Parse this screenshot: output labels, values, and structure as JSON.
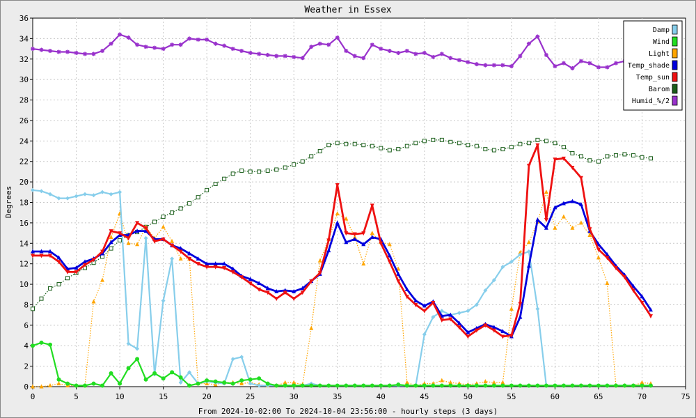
{
  "chart_data": {
    "type": "line",
    "title": "Weather in Essex",
    "xlabel": "From 2024-10-02:00 To 2024-10-04 23:56:00 - hourly steps (3 days)",
    "ylabel": "Degrees",
    "xlim": [
      0,
      75
    ],
    "ylim": [
      0,
      36
    ],
    "x_ticks": [
      0,
      5,
      10,
      15,
      20,
      25,
      30,
      35,
      40,
      45,
      50,
      55,
      60,
      65,
      70,
      75
    ],
    "y_ticks": [
      0,
      2,
      4,
      6,
      8,
      10,
      12,
      14,
      16,
      18,
      20,
      22,
      24,
      26,
      28,
      30,
      32,
      34,
      36
    ],
    "grid": true,
    "legend_position": "top-right",
    "series": [
      {
        "name": "Damp",
        "color": "#87ceeb",
        "marker": "diamond",
        "style": "solid",
        "values": [
          19.2,
          19.1,
          18.8,
          18.4,
          18.4,
          18.6,
          18.8,
          18.7,
          19.0,
          18.8,
          19.0,
          4.2,
          3.7,
          14.5,
          1.2,
          8.4,
          12.5,
          0.4,
          1.4,
          0.3,
          0.5,
          0.4,
          0.3,
          2.7,
          2.9,
          0.3,
          0.1,
          0.1,
          0.1,
          0.1,
          0.1,
          0.1,
          0.3,
          0.1,
          0.1,
          0.1,
          0.1,
          0.1,
          0.1,
          0.1,
          0.1,
          0.1,
          0.1,
          0.1,
          0.1,
          5.1,
          6.8,
          7.4,
          7.0,
          7.2,
          7.4,
          8.0,
          9.4,
          10.4,
          11.7,
          12.2,
          12.9,
          13.2,
          7.6,
          0.1,
          0.1,
          0.1,
          0.1,
          0.1,
          0.1,
          0.1,
          0.1,
          0.1,
          0.1,
          0.1,
          0.1,
          0.1
        ]
      },
      {
        "name": "Wind",
        "color": "#22dd22",
        "marker": "circle",
        "style": "solid",
        "values": [
          4.0,
          4.3,
          4.1,
          0.7,
          0.3,
          0.1,
          0.1,
          0.3,
          0.1,
          1.3,
          0.3,
          1.8,
          2.7,
          0.7,
          1.3,
          0.8,
          1.4,
          0.9,
          0.1,
          0.3,
          0.6,
          0.5,
          0.4,
          0.3,
          0.6,
          0.7,
          0.8,
          0.3,
          0.1,
          0.1,
          0.1,
          0.1,
          0.1,
          0.1,
          0.1,
          0.1,
          0.1,
          0.1,
          0.1,
          0.1,
          0.1,
          0.1,
          0.2,
          0.1,
          0.1,
          0.1,
          0.1,
          0.1,
          0.1,
          0.1,
          0.1,
          0.1,
          0.1,
          0.1,
          0.1,
          0.1,
          0.1,
          0.1,
          0.1,
          0.1,
          0.1,
          0.1,
          0.1,
          0.1,
          0.1,
          0.1,
          0.1,
          0.1,
          0.1,
          0.1,
          0.1,
          0.1
        ]
      },
      {
        "name": "Light",
        "color": "#ffa500",
        "marker": "triangle",
        "style": "dotted",
        "values": [
          0.0,
          0.0,
          0.1,
          0.3,
          0.1,
          0.1,
          0.1,
          8.3,
          10.4,
          14.6,
          16.9,
          14.0,
          13.9,
          15.6,
          14.5,
          15.6,
          14.2,
          12.5,
          12.5,
          0.3,
          0.3,
          0.2,
          0.4,
          0.4,
          0.3,
          0.4,
          0.2,
          0.1,
          0.1,
          0.4,
          0.4,
          0.2,
          5.7,
          12.3,
          14.4,
          16.9,
          16.4,
          14.6,
          12.0,
          15.0,
          14.1,
          13.9,
          11.5,
          0.4,
          0.1,
          0.3,
          0.3,
          0.6,
          0.4,
          0.3,
          0.2,
          0.3,
          0.5,
          0.4,
          0.4,
          7.6,
          13.1,
          14.1,
          16.1,
          19.0,
          15.5,
          16.6,
          15.5,
          16.0,
          14.8,
          12.6,
          10.1,
          0.1,
          0.1,
          0.1,
          0.4,
          0.3
        ]
      },
      {
        "name": "Temp_shade",
        "color": "#0000dd",
        "marker": "triangle",
        "style": "solid",
        "values": [
          13.2,
          13.2,
          13.2,
          12.6,
          11.5,
          11.6,
          12.2,
          12.5,
          13.0,
          14.1,
          14.8,
          14.8,
          15.2,
          15.2,
          14.4,
          14.4,
          13.8,
          13.5,
          13.0,
          12.5,
          12.0,
          12.0,
          12.0,
          11.5,
          10.8,
          10.5,
          10.1,
          9.6,
          9.3,
          9.4,
          9.3,
          9.6,
          10.3,
          11.0,
          13.3,
          16.0,
          14.1,
          14.4,
          13.9,
          14.6,
          14.4,
          12.8,
          11.0,
          9.5,
          8.4,
          7.9,
          8.3,
          6.9,
          7.0,
          6.2,
          5.3,
          5.7,
          6.1,
          5.8,
          5.4,
          4.9,
          6.8,
          11.8,
          16.3,
          15.5,
          17.5,
          17.9,
          18.1,
          17.8,
          15.2,
          13.9,
          12.9,
          11.8,
          10.9,
          9.8,
          8.8,
          7.5
        ]
      },
      {
        "name": "Temp_sun",
        "color": "#ee1111",
        "marker": "triangle-down",
        "style": "solid",
        "values": [
          12.8,
          12.8,
          12.8,
          12.2,
          11.2,
          11.2,
          11.9,
          12.4,
          13.2,
          15.2,
          15.0,
          14.5,
          16.0,
          15.5,
          14.2,
          14.4,
          13.8,
          13.2,
          12.5,
          12.0,
          11.7,
          11.7,
          11.6,
          11.2,
          10.7,
          10.1,
          9.5,
          9.2,
          8.6,
          9.2,
          8.6,
          9.2,
          10.3,
          11.1,
          14.3,
          19.7,
          15.0,
          14.9,
          15.0,
          17.7,
          14.0,
          12.2,
          10.3,
          8.8,
          8.0,
          7.4,
          8.2,
          6.5,
          6.6,
          5.8,
          4.9,
          5.5,
          6.0,
          5.5,
          4.9,
          5.0,
          8.1,
          21.6,
          23.6,
          16.3,
          22.2,
          22.3,
          21.4,
          20.4,
          15.4,
          13.4,
          12.6,
          11.6,
          10.7,
          9.4,
          8.2,
          6.9
        ]
      },
      {
        "name": "Barom",
        "color": "#1a5e1a",
        "marker": "square",
        "style": "dotted",
        "values": [
          7.6,
          8.6,
          9.6,
          10.0,
          10.6,
          11.1,
          11.6,
          12.1,
          12.7,
          13.5,
          14.3,
          14.8,
          15.1,
          15.6,
          16.1,
          16.6,
          17.0,
          17.4,
          17.9,
          18.5,
          19.2,
          19.8,
          20.3,
          20.8,
          21.1,
          21.0,
          21.0,
          21.1,
          21.2,
          21.4,
          21.7,
          22.0,
          22.5,
          23.0,
          23.6,
          23.8,
          23.7,
          23.7,
          23.6,
          23.5,
          23.3,
          23.1,
          23.2,
          23.5,
          23.8,
          24.0,
          24.1,
          24.1,
          23.9,
          23.8,
          23.6,
          23.5,
          23.2,
          23.1,
          23.2,
          23.4,
          23.7,
          23.8,
          24.1,
          24.0,
          23.8,
          23.4,
          22.8,
          22.5,
          22.1,
          22.0,
          22.5,
          22.6,
          22.7,
          22.6,
          22.4,
          22.3
        ]
      },
      {
        "name": "Humid_%/2",
        "color": "#9932cc",
        "marker": "star",
        "style": "solid",
        "values": [
          33.0,
          32.9,
          32.8,
          32.7,
          32.7,
          32.6,
          32.5,
          32.5,
          32.8,
          33.5,
          34.4,
          34.1,
          33.4,
          33.2,
          33.1,
          33.0,
          33.4,
          33.4,
          34.0,
          33.9,
          33.9,
          33.5,
          33.3,
          33.0,
          32.8,
          32.6,
          32.5,
          32.4,
          32.3,
          32.3,
          32.2,
          32.1,
          33.2,
          33.5,
          33.4,
          34.1,
          32.8,
          32.3,
          32.1,
          33.4,
          33.0,
          32.8,
          32.6,
          32.8,
          32.5,
          32.6,
          32.2,
          32.5,
          32.1,
          31.9,
          31.7,
          31.5,
          31.4,
          31.4,
          31.4,
          31.3,
          32.3,
          33.5,
          34.2,
          32.4,
          31.3,
          31.6,
          31.1,
          31.8,
          31.6,
          31.2,
          31.2,
          31.6,
          31.8,
          32.0,
          32.3,
          32.1
        ]
      }
    ]
  }
}
